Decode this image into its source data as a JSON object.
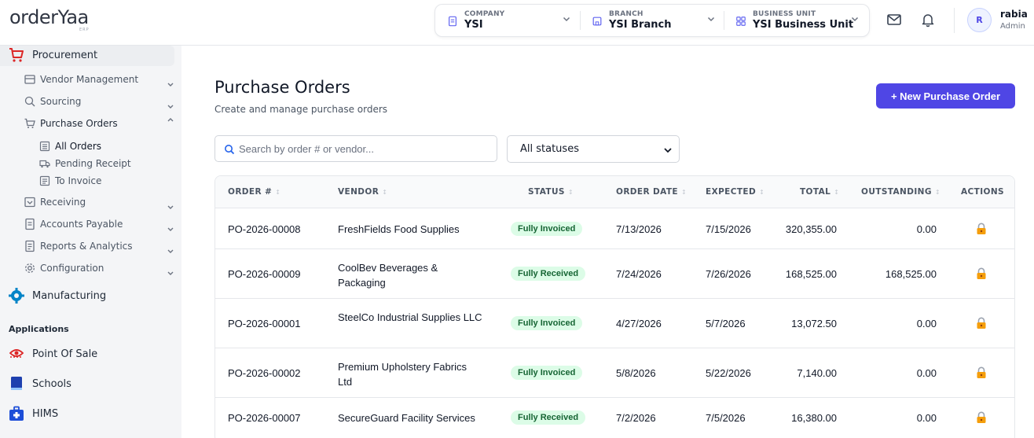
{
  "header": {
    "logo_text": "orderYaa",
    "logo_sub": "ERP",
    "selectors": [
      {
        "label": "COMPANY",
        "value": "YSI"
      },
      {
        "label": "BRANCH",
        "value": "YSI Branch"
      },
      {
        "label": "BUSINESS UNIT",
        "value": "YSI Business Unit"
      }
    ],
    "user": {
      "initial": "R",
      "name": "rabia",
      "role": "Admin"
    }
  },
  "sidebar": {
    "procurement": "Procurement",
    "sub_items": [
      {
        "label": "Vendor Management"
      },
      {
        "label": "Sourcing"
      },
      {
        "label": "Purchase Orders"
      }
    ],
    "po_children": [
      {
        "label": "All Orders"
      },
      {
        "label": "Pending Receipt"
      },
      {
        "label": "To Invoice"
      }
    ],
    "more_items": [
      {
        "label": "Receiving"
      },
      {
        "label": "Accounts Payable"
      },
      {
        "label": "Reports & Analytics"
      },
      {
        "label": "Configuration"
      }
    ],
    "manufacturing": "Manufacturing",
    "applications_heading": "Applications",
    "apps": [
      {
        "label": "Point Of Sale"
      },
      {
        "label": "Schools"
      },
      {
        "label": "HIMS"
      }
    ]
  },
  "main": {
    "title": "Purchase Orders",
    "subtitle": "Create and manage purchase orders",
    "new_button": "+ New Purchase Order",
    "search_placeholder": "Search by order # or vendor...",
    "status_filter": "All statuses",
    "columns": [
      "ORDER #",
      "VENDOR",
      "STATUS",
      "ORDER DATE",
      "EXPECTED",
      "TOTAL",
      "OUTSTANDING",
      "ACTIONS"
    ],
    "rows": [
      {
        "order": "PO-2026-00008",
        "vendor": "FreshFields Food Supplies",
        "status": "Fully Invoiced",
        "order_date": "7/13/2026",
        "expected": "7/15/2026",
        "total": "320,355.00",
        "outstanding": "0.00"
      },
      {
        "order": "PO-2026-00009",
        "vendor": "CoolBev Beverages & Packaging",
        "status": "Fully Received",
        "order_date": "7/24/2026",
        "expected": "7/26/2026",
        "total": "168,525.00",
        "outstanding": "168,525.00"
      },
      {
        "order": "PO-2026-00001",
        "vendor": "SteelCo Industrial Supplies LLC",
        "status": "Fully Invoiced",
        "order_date": "4/27/2026",
        "expected": "5/7/2026",
        "total": "13,072.50",
        "outstanding": "0.00"
      },
      {
        "order": "PO-2026-00002",
        "vendor": "Premium Upholstery Fabrics Ltd",
        "status": "Fully Invoiced",
        "order_date": "5/8/2026",
        "expected": "5/22/2026",
        "total": "7,140.00",
        "outstanding": "0.00"
      },
      {
        "order": "PO-2026-00007",
        "vendor": "SecureGuard Facility Services",
        "status": "Fully Received",
        "order_date": "7/2/2026",
        "expected": "7/5/2026",
        "total": "16,380.00",
        "outstanding": "0.00"
      }
    ]
  }
}
